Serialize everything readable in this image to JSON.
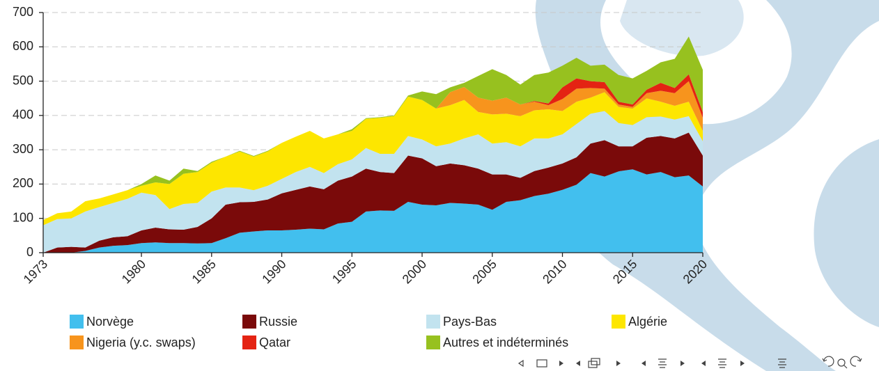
{
  "chart_data": {
    "type": "stacked-area",
    "x": [
      1973,
      1974,
      1975,
      1976,
      1977,
      1978,
      1979,
      1980,
      1981,
      1982,
      1983,
      1984,
      1985,
      1986,
      1987,
      1988,
      1989,
      1990,
      1991,
      1992,
      1993,
      1994,
      1995,
      1996,
      1997,
      1998,
      1999,
      2000,
      2001,
      2002,
      2003,
      2004,
      2005,
      2006,
      2007,
      2008,
      2009,
      2010,
      2011,
      2012,
      2013,
      2014,
      2015,
      2016,
      2017,
      2018,
      2019,
      2020
    ],
    "xlim": [
      1973,
      2020
    ],
    "xticks": [
      1973,
      1980,
      1985,
      1990,
      1995,
      2000,
      2005,
      2010,
      2015,
      2020
    ],
    "ylim": [
      0,
      700
    ],
    "yticks": [
      0,
      100,
      200,
      300,
      400,
      500,
      600,
      700
    ],
    "grid": true,
    "series": [
      {
        "name": "Norvège",
        "color": "#42bfee",
        "values": [
          0,
          0,
          0,
          5,
          15,
          20,
          22,
          28,
          30,
          28,
          28,
          27,
          28,
          42,
          58,
          62,
          65,
          65,
          67,
          70,
          68,
          85,
          90,
          120,
          123,
          122,
          148,
          140,
          138,
          145,
          143,
          140,
          125,
          148,
          153,
          165,
          172,
          183,
          198,
          232,
          222,
          237,
          243,
          228,
          235,
          220,
          225,
          193
        ]
      },
      {
        "name": "Russie",
        "color": "#7a0a0a",
        "values": [
          0,
          15,
          17,
          10,
          20,
          25,
          26,
          37,
          43,
          40,
          39,
          48,
          72,
          98,
          89,
          86,
          90,
          108,
          116,
          123,
          117,
          125,
          132,
          125,
          112,
          110,
          135,
          135,
          114,
          115,
          112,
          105,
          103,
          80,
          65,
          73,
          76,
          77,
          80,
          86,
          106,
          73,
          67,
          107,
          105,
          113,
          125,
          90
        ]
      },
      {
        "name": "Pays-Bas",
        "color": "#c2e3ef",
        "values": [
          80,
          83,
          83,
          105,
          98,
          100,
          109,
          110,
          95,
          59,
          75,
          70,
          78,
          50,
          43,
          34,
          40,
          42,
          52,
          57,
          47,
          48,
          50,
          60,
          53,
          56,
          57,
          55,
          58,
          58,
          78,
          100,
          90,
          94,
          92,
          95,
          85,
          85,
          97,
          87,
          85,
          68,
          62,
          60,
          57,
          55,
          48,
          42
        ]
      },
      {
        "name": "Algérie",
        "color": "#fde600",
        "values": [
          15,
          17,
          20,
          30,
          25,
          25,
          25,
          20,
          37,
          73,
          88,
          90,
          84,
          90,
          105,
          98,
          100,
          105,
          103,
          105,
          101,
          87,
          83,
          85,
          105,
          110,
          115,
          115,
          110,
          112,
          112,
          65,
          85,
          83,
          88,
          82,
          85,
          68,
          65,
          47,
          55,
          47,
          48,
          55,
          43,
          40,
          42,
          30
        ]
      },
      {
        "name": "Nigeria (y.c. swaps)",
        "color": "#f7941d",
        "values": [
          0,
          0,
          0,
          0,
          0,
          0,
          0,
          0,
          0,
          0,
          0,
          0,
          0,
          0,
          0,
          0,
          0,
          0,
          0,
          0,
          0,
          0,
          0,
          0,
          0,
          0,
          0,
          0,
          0,
          38,
          38,
          42,
          40,
          47,
          34,
          25,
          12,
          35,
          38,
          28,
          10,
          7,
          5,
          15,
          32,
          37,
          60,
          38
        ]
      },
      {
        "name": "Qatar",
        "color": "#e42313",
        "values": [
          0,
          0,
          0,
          0,
          0,
          0,
          0,
          0,
          0,
          0,
          0,
          0,
          0,
          0,
          0,
          0,
          0,
          0,
          0,
          0,
          0,
          0,
          0,
          0,
          0,
          0,
          0,
          0,
          0,
          0,
          0,
          0,
          0,
          0,
          0,
          2,
          5,
          34,
          30,
          20,
          19,
          8,
          7,
          10,
          23,
          15,
          20,
          17
        ]
      },
      {
        "name": "Autres et indéterminés",
        "color": "#97c11f",
        "values": [
          0,
          0,
          0,
          0,
          0,
          0,
          0,
          5,
          20,
          10,
          15,
          3,
          3,
          0,
          2,
          2,
          2,
          0,
          0,
          0,
          0,
          0,
          5,
          2,
          2,
          2,
          3,
          25,
          42,
          14,
          12,
          63,
          92,
          66,
          58,
          76,
          90,
          63,
          60,
          45,
          51,
          78,
          76,
          55,
          60,
          85,
          110,
          123
        ]
      }
    ]
  }
}
